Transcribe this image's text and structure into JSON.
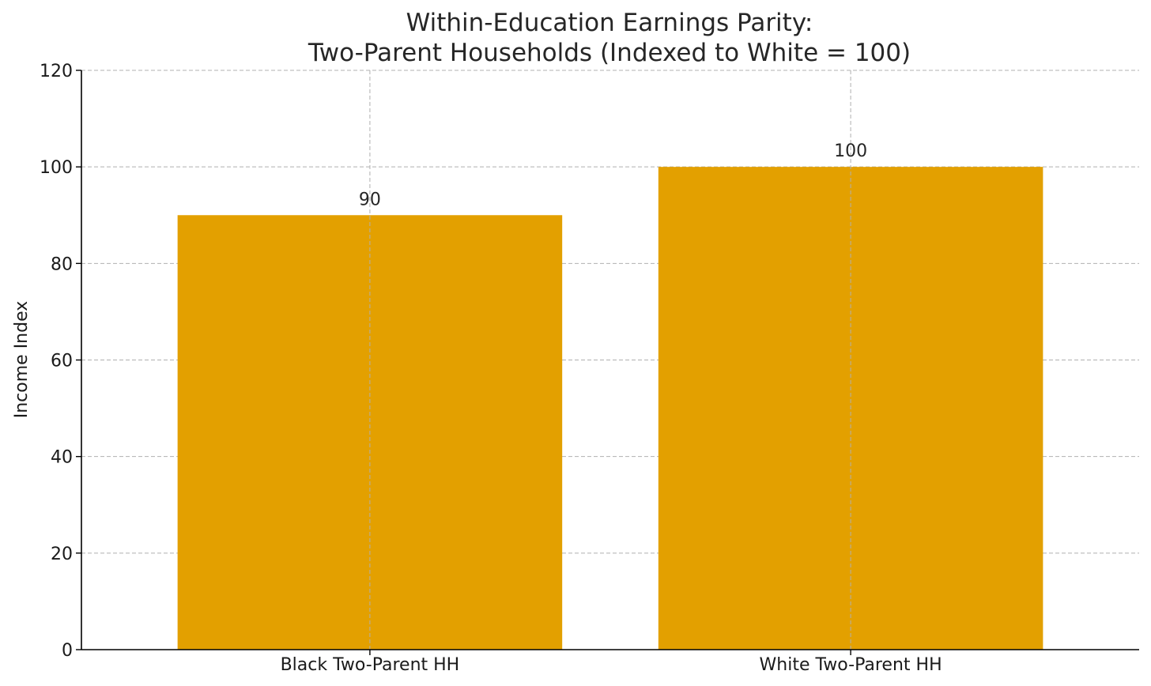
{
  "chart_data": {
    "type": "bar",
    "title": [
      "Within-Education Earnings Parity:",
      "Two-Parent Households (Indexed to White = 100)"
    ],
    "xlabel": "",
    "ylabel": "Income Index",
    "categories": [
      "Black Two-Parent HH",
      "White Two-Parent HH"
    ],
    "values": [
      90,
      100
    ],
    "data_labels": [
      "90",
      "100"
    ],
    "ylim": [
      0,
      120
    ],
    "yticks": [
      0,
      20,
      40,
      60,
      80,
      100,
      120
    ],
    "grid": true,
    "legend": "none",
    "colors": {
      "bar": "#e3a000"
    }
  }
}
